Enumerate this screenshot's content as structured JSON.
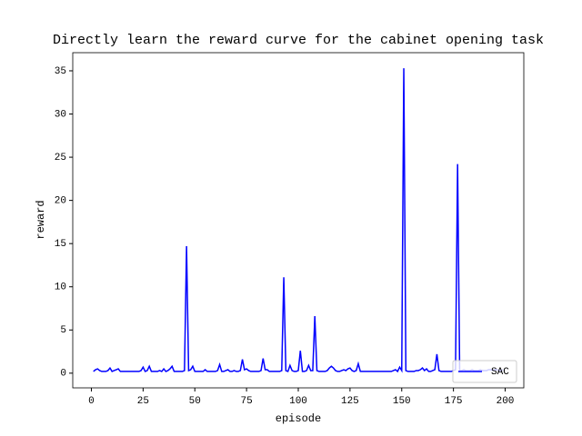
{
  "chart_data": {
    "type": "line",
    "title": "Directly learn the reward curve for the cabinet opening task",
    "x_label": "episode",
    "y_label": "reward",
    "x": [
      1,
      2,
      3,
      4,
      5,
      6,
      7,
      8,
      9,
      10,
      11,
      12,
      13,
      14,
      15,
      16,
      17,
      18,
      19,
      20,
      21,
      22,
      23,
      24,
      25,
      26,
      27,
      28,
      29,
      30,
      31,
      32,
      33,
      34,
      35,
      36,
      37,
      38,
      39,
      40,
      41,
      42,
      43,
      44,
      45,
      46,
      47,
      48,
      49,
      50,
      51,
      52,
      53,
      54,
      55,
      56,
      57,
      58,
      59,
      60,
      61,
      62,
      63,
      64,
      65,
      66,
      67,
      68,
      69,
      70,
      71,
      72,
      73,
      74,
      75,
      76,
      77,
      78,
      79,
      80,
      81,
      82,
      83,
      84,
      85,
      86,
      87,
      88,
      89,
      90,
      91,
      92,
      93,
      94,
      95,
      96,
      97,
      98,
      99,
      100,
      101,
      102,
      103,
      104,
      105,
      106,
      107,
      108,
      109,
      110,
      111,
      112,
      113,
      114,
      115,
      116,
      117,
      118,
      119,
      120,
      121,
      122,
      123,
      124,
      125,
      126,
      127,
      128,
      129,
      130,
      131,
      132,
      133,
      134,
      135,
      136,
      137,
      138,
      139,
      140,
      141,
      142,
      143,
      144,
      145,
      146,
      147,
      148,
      149,
      150,
      151,
      152,
      153,
      154,
      155,
      156,
      157,
      158,
      159,
      160,
      161,
      162,
      163,
      164,
      165,
      166,
      167,
      168,
      169,
      170,
      171,
      172,
      173,
      174,
      175,
      176,
      177,
      178,
      179,
      180,
      181,
      182,
      183,
      184,
      185,
      186,
      187,
      188,
      189,
      190,
      191,
      192,
      193,
      194,
      195,
      196,
      197,
      198,
      199
    ],
    "series": [
      {
        "name": "SAC",
        "color": "#0000ff",
        "values": [
          0.2,
          0.4,
          0.5,
          0.3,
          0.2,
          0.2,
          0.2,
          0.3,
          0.6,
          0.2,
          0.3,
          0.4,
          0.5,
          0.2,
          0.2,
          0.2,
          0.2,
          0.2,
          0.2,
          0.2,
          0.2,
          0.2,
          0.2,
          0.3,
          0.7,
          0.2,
          0.3,
          0.8,
          0.2,
          0.2,
          0.2,
          0.2,
          0.3,
          0.2,
          0.5,
          0.2,
          0.3,
          0.5,
          0.8,
          0.2,
          0.2,
          0.2,
          0.2,
          0.2,
          0.3,
          14.7,
          0.3,
          0.4,
          0.8,
          0.2,
          0.2,
          0.2,
          0.2,
          0.2,
          0.4,
          0.2,
          0.2,
          0.2,
          0.2,
          0.2,
          0.3,
          1.0,
          0.2,
          0.2,
          0.3,
          0.4,
          0.2,
          0.2,
          0.3,
          0.2,
          0.2,
          0.3,
          1.6,
          0.4,
          0.5,
          0.3,
          0.2,
          0.2,
          0.2,
          0.2,
          0.2,
          0.3,
          1.7,
          0.4,
          0.4,
          0.2,
          0.2,
          0.2,
          0.2,
          0.2,
          0.2,
          0.3,
          11.1,
          0.3,
          0.2,
          0.9,
          0.3,
          0.2,
          0.2,
          0.3,
          2.6,
          0.2,
          0.2,
          0.3,
          0.9,
          0.3,
          0.3,
          6.6,
          0.3,
          0.2,
          0.2,
          0.2,
          0.2,
          0.3,
          0.6,
          0.8,
          0.6,
          0.3,
          0.2,
          0.2,
          0.3,
          0.4,
          0.3,
          0.5,
          0.6,
          0.3,
          0.2,
          0.3,
          1.1,
          0.2,
          0.2,
          0.2,
          0.2,
          0.2,
          0.2,
          0.2,
          0.2,
          0.2,
          0.2,
          0.2,
          0.2,
          0.2,
          0.2,
          0.2,
          0.2,
          0.3,
          0.4,
          0.2,
          0.7,
          0.3,
          35.3,
          0.3,
          0.2,
          0.2,
          0.2,
          0.2,
          0.3,
          0.3,
          0.4,
          0.6,
          0.3,
          0.5,
          0.2,
          0.2,
          0.3,
          0.4,
          2.2,
          0.3,
          0.2,
          0.2,
          0.2,
          0.2,
          0.2,
          0.2,
          0.3,
          0.4,
          24.2,
          0.3,
          0.3,
          0.4,
          0.3,
          0.3,
          0.3,
          0.4,
          0.3,
          0.3,
          0.3,
          0.4,
          0.3,
          0.3,
          0.3,
          0.4,
          0.4,
          0.3,
          0.4,
          0.4,
          0.3,
          0.3,
          0.4
        ]
      }
    ],
    "xlim": [
      -9,
      209
    ],
    "ylim": [
      -1.7,
      37.1
    ],
    "xticks": [
      0,
      25,
      50,
      75,
      100,
      125,
      150,
      175,
      200
    ],
    "yticks": [
      0,
      5,
      10,
      15,
      20,
      25,
      30,
      35
    ],
    "legend": "lower right"
  }
}
